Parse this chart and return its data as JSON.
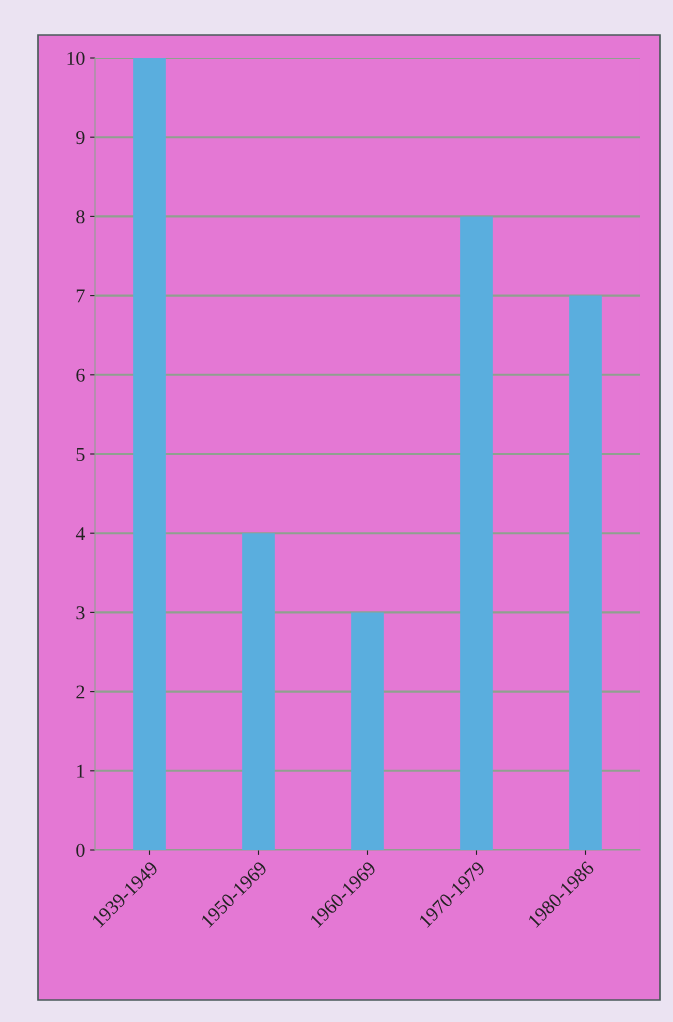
{
  "chart_data": {
    "type": "bar",
    "categories": [
      "1939-1949",
      "1950-1969",
      "1960-1969",
      "1970-1979",
      "1980-1986"
    ],
    "values": [
      10,
      4,
      3,
      8,
      7
    ],
    "color": "#5aaede",
    "ylim": [
      0,
      10
    ],
    "yticks": [
      0,
      1,
      2,
      3,
      4,
      5,
      6,
      7,
      8,
      9,
      10
    ],
    "grid": "y"
  }
}
